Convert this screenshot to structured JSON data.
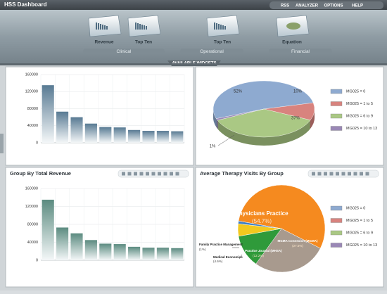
{
  "header": {
    "title": "HSS Dashboard",
    "menu": [
      "RSS",
      "ANALYZER",
      "OPTIONS",
      "HELP"
    ]
  },
  "widgets": {
    "items": [
      "Revenue",
      "Top Ten",
      "Top Ten",
      "Equation"
    ],
    "groups": [
      "Clinical",
      "Operational",
      "Financial"
    ],
    "tab": "AVAILABLE WIDGETS"
  },
  "chart_data": [
    {
      "type": "bar",
      "categories": [
        null,
        null,
        null,
        null,
        null,
        null,
        null,
        null,
        null,
        null
      ],
      "values": [
        135000,
        73000,
        60000,
        45000,
        37000,
        36000,
        30000,
        28000,
        28000,
        27000
      ],
      "color": "#587a93",
      "ylim": [
        0,
        160000
      ],
      "yticks": [
        0,
        40000,
        80000,
        120000,
        160000
      ],
      "grid": true
    },
    {
      "type": "pie3d",
      "categories": [
        "MG025 = 0",
        "MG025 = 1 to 5",
        "MG025 = 6 to 9",
        "MG025 = 10 to 13"
      ],
      "values": [
        52,
        10,
        37,
        1
      ],
      "value_labels": [
        "52%",
        "10%",
        "37%",
        "1%"
      ],
      "colors": [
        "#8eaad0",
        "#d8837e",
        "#aac884",
        "#9a88b6"
      ],
      "legend": "right"
    },
    {
      "type": "bar",
      "title": "Group By Total Revenue",
      "categories": [
        null,
        null,
        null,
        null,
        null,
        null,
        null,
        null,
        null,
        null
      ],
      "values": [
        135000,
        73000,
        60000,
        45000,
        37000,
        36000,
        30000,
        28000,
        28000,
        27000
      ],
      "color": "#5b8b80",
      "ylim": [
        0,
        160000
      ],
      "yticks": [
        0,
        40000,
        80000,
        120000,
        160000
      ],
      "grid": true
    },
    {
      "type": "pie",
      "title": "Average Therapy Visits By Group",
      "categories": [
        "Physicians Practice",
        "MGMA Connexion (MGMA)",
        "Group Practice Journal (MHSA)",
        "Medical Economics",
        "Family Practice Management"
      ],
      "values": [
        54.7,
        27.5,
        12.2,
        4.6,
        1
      ],
      "value_labels": [
        "(54.7%)",
        "(27.5%)",
        "(12.2%)",
        "(4.6%)",
        "(1%)"
      ],
      "colors": [
        "#f58a1f",
        "#a89a8e",
        "#2f9a3a",
        "#f2c81e",
        "#3f7fc4"
      ],
      "legend_entries": [
        "MG025 = 0",
        "MG025 = 1 to 5",
        "MG025 = 6 to 9",
        "MG025 = 10 to 13"
      ],
      "legend_colors": [
        "#8eaad0",
        "#d8837e",
        "#aac884",
        "#9a88b6"
      ]
    }
  ]
}
